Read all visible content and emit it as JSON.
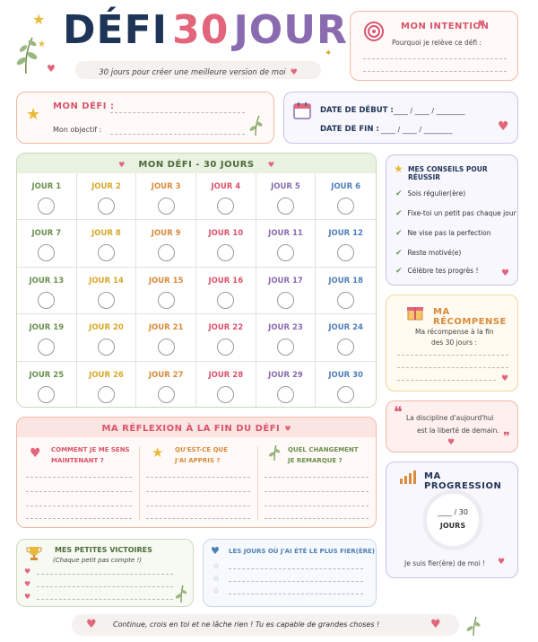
{
  "title": {
    "part1": "DÉFI",
    "part2": "30",
    "part3": "JOURS",
    "subtitle": "30 jours pour créer une meilleure version de moi"
  },
  "intention": {
    "title": "MON INTENTION",
    "question": "Pourquoi je relève ce défi :"
  },
  "defi": {
    "title": "MON DÉFI :",
    "objective": "Mon objectif :"
  },
  "dates": {
    "start": "DATE DE DÉBUT :",
    "end": "DATE DE FIN :",
    "blank": "____ / ____ / ________"
  },
  "grid": {
    "title": "MON DÉFI - 30 JOURS",
    "days": [
      "JOUR 1",
      "JOUR 2",
      "JOUR 3",
      "JOUR 4",
      "JOUR 5",
      "JOUR 6",
      "JOUR 7",
      "JOUR 8",
      "JOUR 9",
      "JOUR 10",
      "JOUR 11",
      "JOUR 12",
      "JOUR 13",
      "JOUR 14",
      "JOUR 15",
      "JOUR 16",
      "JOUR 17",
      "JOUR 18",
      "JOUR 19",
      "JOUR 20",
      "JOUR 21",
      "JOUR 22",
      "JOUR 23",
      "JOUR 24",
      "JOUR 25",
      "JOUR 26",
      "JOUR 27",
      "JOUR 28",
      "JOUR 29",
      "JOUR 30"
    ],
    "column_colors": [
      "#6b8f4e",
      "#d9a72a",
      "#d98a3a",
      "#d9546c",
      "#8a6bb0",
      "#4f7fb8"
    ]
  },
  "tips": {
    "title": "MES CONSEILS POUR RÉUSSIR",
    "items": [
      "Sois régulier(ère)",
      "Fixe-toi un petit pas chaque jour",
      "Ne vise pas la perfection",
      "Reste motivé(e)",
      "Célèbre tes progrès !"
    ]
  },
  "reward": {
    "title": "MA RÉCOMPENSE",
    "text1": "Ma récompense à la fin",
    "text2": "des 30 jours :"
  },
  "quote": {
    "line1": "La discipline d'aujourd'hui",
    "line2": "est la liberté de demain."
  },
  "progress": {
    "title": "MA PROGRESSION",
    "value": "____ / 30",
    "label": "JOURS",
    "proud": "Je suis fier(ère) de moi !"
  },
  "reflection": {
    "title": "MA RÉFLEXION À LA FIN DU DÉFI",
    "q1a": "COMMENT JE ME SENS",
    "q1b": "MAINTENANT ?",
    "q2a": "QU'EST-CE QUE",
    "q2b": "J'AI APPRIS ?",
    "q3a": "QUEL CHANGEMENT",
    "q3b": "JE REMARQUE ?"
  },
  "victories": {
    "title": "MES PETITES VICTOIRES",
    "subtitle": "(Chaque petit pas compte !)"
  },
  "proudest": {
    "title": "LES JOURS OÙ J'AI ÉTÉ LE PLUS FIER(ÈRE)"
  },
  "footer": {
    "text": "Continue, crois en toi et ne lâche rien ! Tu es capable de grandes choses !"
  },
  "colors": {
    "green": "#6b8f4e",
    "pink": "#d9546c",
    "purple": "#8a6bb0",
    "navy": "#1f3557",
    "orange": "#d98a3a",
    "blue": "#4f7fb8"
  }
}
